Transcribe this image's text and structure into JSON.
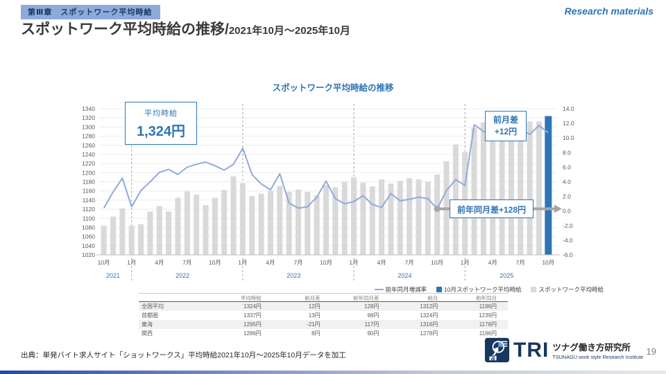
{
  "header": {
    "badge": "第Ⅲ章　スポットワーク平均時給",
    "title_main": "スポットワーク平均時給の推移/",
    "title_range": "2021年10月～2025年10月",
    "watermark": "Research materials"
  },
  "chart_data": {
    "type": "bar",
    "title": "スポットワーク平均時給の推移",
    "x_start": "2021-10",
    "x_end": "2025-10",
    "series": [
      {
        "name": "スポットワーク平均時給",
        "type": "bar",
        "axis": "left",
        "values": [
          1084,
          1104,
          1122,
          1084,
          1087,
          1115,
          1127,
          1115,
          1145,
          1159,
          1152,
          1129,
          1145,
          1162,
          1192,
          1177,
          1149,
          1154,
          1160,
          1171,
          1158,
          1163,
          1158,
          1150,
          1173,
          1168,
          1180,
          1190,
          1178,
          1170,
          1185,
          1176,
          1182,
          1188,
          1185,
          1180,
          1196,
          1225,
          1262,
          1245,
          1298,
          1310,
          1305,
          1310,
          1315,
          1320,
          1312,
          1312,
          1324
        ]
      },
      {
        "name": "前年同月増減率",
        "type": "line",
        "axis": "right",
        "values": [
          0.4,
          2.6,
          4.5,
          0.6,
          2.8,
          4.0,
          5.3,
          5.7,
          5.0,
          6.0,
          6.4,
          6.7,
          6.2,
          5.6,
          6.4,
          8.6,
          5.0,
          3.7,
          2.9,
          5.1,
          1.1,
          0.4,
          0.6,
          1.9,
          4.1,
          1.7,
          1.0,
          1.3,
          2.1,
          0.9,
          0.5,
          2.4,
          1.4,
          1.6,
          1.9,
          1.7,
          0.3,
          2.8,
          4.3,
          3.5,
          11.8,
          10.9,
          10.3,
          11.4,
          10.8,
          11.2,
          10.5,
          11.7,
          10.7
        ]
      }
    ],
    "highlight": {
      "index": 48,
      "name": "10月スポットワーク平均時給",
      "value": 1324
    },
    "left_axis": {
      "min": 1020,
      "max": 1340,
      "step": 20
    },
    "right_axis": {
      "min": -6,
      "max": 14,
      "step": 2
    },
    "x_ticks": [
      {
        "i": 0,
        "label": "10月"
      },
      {
        "i": 3,
        "label": "1月"
      },
      {
        "i": 6,
        "label": "4月"
      },
      {
        "i": 9,
        "label": "7月"
      },
      {
        "i": 12,
        "label": "10月"
      },
      {
        "i": 15,
        "label": "1月"
      },
      {
        "i": 18,
        "label": "4月"
      },
      {
        "i": 21,
        "label": "7月"
      },
      {
        "i": 24,
        "label": "10月"
      },
      {
        "i": 27,
        "label": "1月"
      },
      {
        "i": 30,
        "label": "4月"
      },
      {
        "i": 33,
        "label": "7月"
      },
      {
        "i": 36,
        "label": "10月"
      },
      {
        "i": 39,
        "label": "1月"
      },
      {
        "i": 42,
        "label": "4月"
      },
      {
        "i": 45,
        "label": "7月"
      },
      {
        "i": 48,
        "label": "10月"
      }
    ],
    "year_labels": [
      {
        "i": 1,
        "label": "2021"
      },
      {
        "i": 8.5,
        "label": "2022"
      },
      {
        "i": 20.5,
        "label": "2023"
      },
      {
        "i": 32.5,
        "label": "2024"
      },
      {
        "i": 43.5,
        "label": "2025"
      }
    ],
    "year_boundaries": [
      3,
      15,
      27,
      39
    ],
    "yoy_marker": {
      "i": 36,
      "value": 0.3
    },
    "grid": true,
    "legend_position": "bottom-right"
  },
  "annotations": {
    "avg_label": "平均時給",
    "avg_value": "1,324円",
    "mom_line1": "前月差",
    "mom_line2": "+12円",
    "yoy_text": "前年同月差+128円"
  },
  "legend": [
    {
      "label": "前年同月増減率",
      "marker": "line"
    },
    {
      "label": "10月スポットワーク平均時給",
      "marker": "square-blue"
    },
    {
      "label": "スポットワーク平均時給",
      "marker": "square-gray"
    }
  ],
  "table": {
    "headers": [
      "平均時給",
      "前月差",
      "前年同月差",
      "前月",
      "前年同月"
    ],
    "rows": [
      {
        "label": "全国平均",
        "values": [
          "1324円",
          "12円",
          "128円",
          "1312円",
          "1196円"
        ]
      },
      {
        "label": "首都圏",
        "values": [
          "1337円",
          "13円",
          "98円",
          "1324円",
          "1239円"
        ]
      },
      {
        "label": "東海",
        "values": [
          "1295円",
          "-21円",
          "117円",
          "1316円",
          "1178円"
        ]
      },
      {
        "label": "関西",
        "values": [
          "1286円",
          "8円",
          "90円",
          "1278円",
          "1196円"
        ]
      }
    ]
  },
  "footer": {
    "source": "出典：単発バイト求人サイト「ショットワークス」平均時給2021年10月～2025年10月データを加工",
    "logo_tri": "TRI",
    "logo_jp": "ツナグ働き方研究所",
    "logo_en": "TSUNAGU work style Research Institute",
    "page": "19"
  },
  "colors": {
    "accent": "#2e75b6",
    "bar": "#d9d9d9",
    "highlight_bar": "#2e75b6",
    "line": "#8faadc",
    "navy": "#17375e",
    "badge_bg": "#8eaadb",
    "arrow_gray": "#a6a6a6"
  }
}
